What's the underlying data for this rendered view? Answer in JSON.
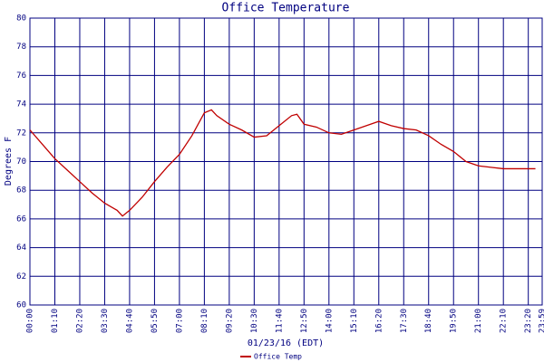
{
  "chart_data": {
    "type": "line",
    "title": "Office Temperature",
    "x_label": "01/23/16 (EDT)",
    "y_label": "Degrees F",
    "x": [
      0,
      35,
      70,
      105,
      140,
      175,
      210,
      245,
      260,
      280,
      315,
      350,
      385,
      420,
      455,
      490,
      510,
      525,
      560,
      595,
      630,
      665,
      700,
      735,
      750,
      770,
      805,
      840,
      875,
      910,
      945,
      980,
      1015,
      1050,
      1085,
      1120,
      1155,
      1190,
      1225,
      1260,
      1295,
      1330,
      1365,
      1400,
      1420
    ],
    "series": [
      {
        "name": "Office Temp",
        "color": "#c00000",
        "values": [
          72.2,
          71.2,
          70.2,
          69.4,
          68.6,
          67.8,
          67.1,
          66.6,
          66.2,
          66.6,
          67.5,
          68.6,
          69.6,
          70.5,
          71.8,
          73.4,
          73.6,
          73.2,
          72.6,
          72.2,
          71.7,
          71.8,
          72.5,
          73.2,
          73.3,
          72.6,
          72.4,
          72.0,
          71.9,
          72.2,
          72.5,
          72.8,
          72.5,
          72.3,
          72.2,
          71.8,
          71.2,
          70.7,
          70.0,
          69.7,
          69.6,
          69.5,
          69.5,
          69.5,
          69.5
        ]
      }
    ],
    "xlim": [
      0,
      1439
    ],
    "xticks": [
      {
        "value": 0,
        "label": "00:00"
      },
      {
        "value": 70,
        "label": "01:10"
      },
      {
        "value": 140,
        "label": "02:20"
      },
      {
        "value": 210,
        "label": "03:30"
      },
      {
        "value": 280,
        "label": "04:40"
      },
      {
        "value": 350,
        "label": "05:50"
      },
      {
        "value": 420,
        "label": "07:00"
      },
      {
        "value": 490,
        "label": "08:10"
      },
      {
        "value": 560,
        "label": "09:20"
      },
      {
        "value": 630,
        "label": "10:30"
      },
      {
        "value": 700,
        "label": "11:40"
      },
      {
        "value": 770,
        "label": "12:50"
      },
      {
        "value": 840,
        "label": "14:00"
      },
      {
        "value": 910,
        "label": "15:10"
      },
      {
        "value": 980,
        "label": "16:20"
      },
      {
        "value": 1050,
        "label": "17:30"
      },
      {
        "value": 1120,
        "label": "18:40"
      },
      {
        "value": 1190,
        "label": "19:50"
      },
      {
        "value": 1260,
        "label": "21:00"
      },
      {
        "value": 1330,
        "label": "22:10"
      },
      {
        "value": 1400,
        "label": "23:20"
      },
      {
        "value": 1439,
        "label": "23:59"
      }
    ],
    "ylim": [
      60,
      80
    ],
    "yticks": [
      60,
      62,
      64,
      66,
      68,
      70,
      72,
      74,
      76,
      78,
      80
    ],
    "grid": true,
    "grid_color": "#000080",
    "legend": "bottom"
  }
}
